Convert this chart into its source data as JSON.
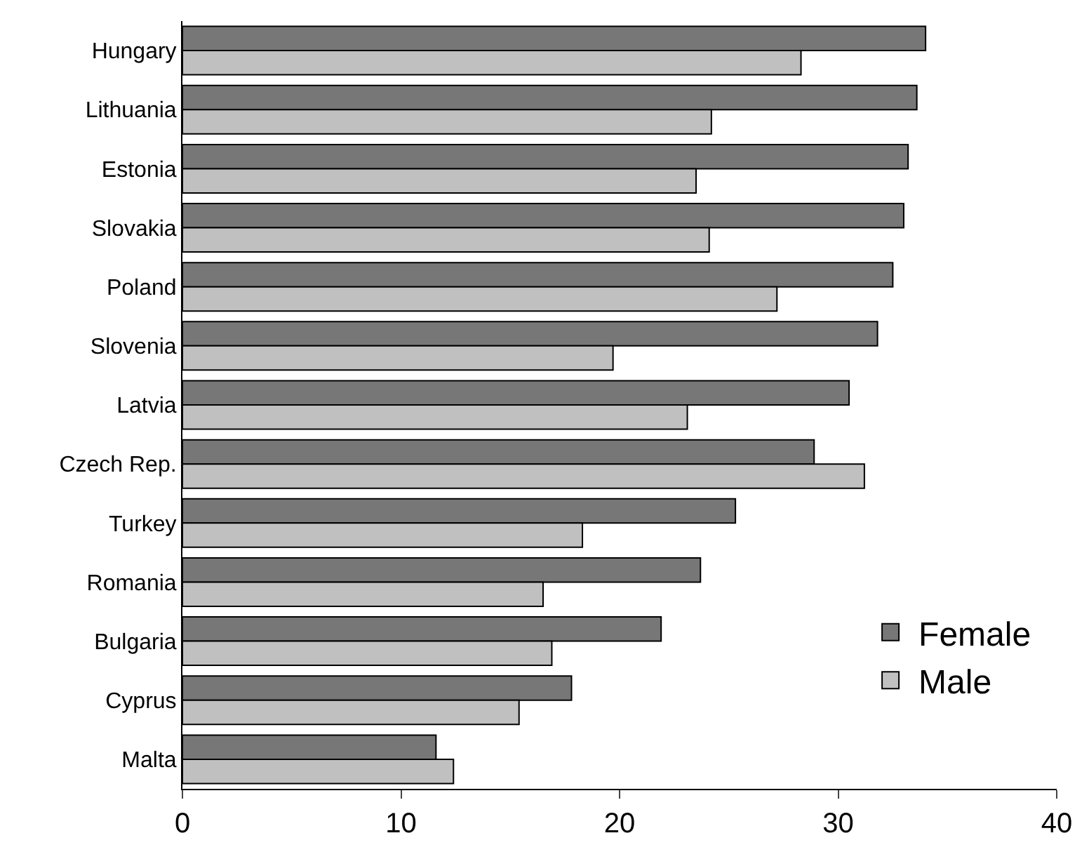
{
  "chart_data": {
    "type": "bar",
    "orientation": "horizontal",
    "categories": [
      "Hungary",
      "Lithuania",
      "Estonia",
      "Slovakia",
      "Poland",
      "Slovenia",
      "Latvia",
      "Czech Rep.",
      "Turkey",
      "Romania",
      "Bulgaria",
      "Cyprus",
      "Malta"
    ],
    "series": [
      {
        "name": "Female",
        "color": "#777777",
        "values": [
          34.0,
          33.6,
          33.2,
          33.0,
          32.5,
          31.8,
          30.5,
          28.9,
          25.3,
          23.7,
          21.9,
          17.8,
          11.6
        ]
      },
      {
        "name": "Male",
        "color": "#c0c0c0",
        "values": [
          28.3,
          24.2,
          23.5,
          24.1,
          27.2,
          19.7,
          23.1,
          31.2,
          18.3,
          16.5,
          16.9,
          15.4,
          12.4
        ]
      }
    ],
    "xlim": [
      0,
      40
    ],
    "xticks": [
      0,
      10,
      20,
      30,
      40
    ],
    "legend": "bottom right"
  }
}
